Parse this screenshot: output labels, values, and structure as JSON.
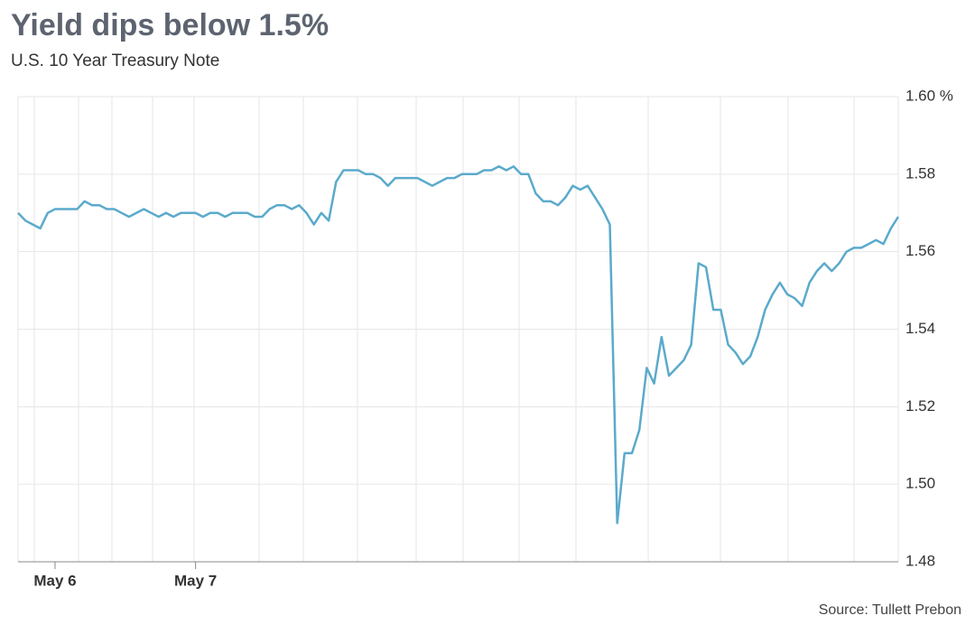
{
  "chart_data": {
    "type": "line",
    "title": "Yield dips below 1.5%",
    "subtitle": "U.S. 10 Year Treasury Note",
    "source": "Source: Tullett Prebon",
    "color": "#5baacb",
    "grid": true,
    "categories": [
      null,
      null,
      null,
      null,
      null,
      "May 6",
      null,
      null,
      null,
      null,
      null,
      null,
      null,
      null,
      null,
      null,
      null,
      null,
      null,
      null,
      null,
      null,
      null,
      null,
      "May 7",
      null,
      null,
      null,
      null,
      null,
      null,
      null,
      null,
      null,
      null,
      null,
      null,
      null,
      null,
      null,
      null,
      null,
      null,
      null,
      null,
      null,
      null,
      null,
      null,
      null,
      null,
      null,
      null,
      null,
      null,
      null,
      null,
      null,
      null,
      null,
      null,
      null,
      null,
      null,
      null,
      null,
      null,
      null,
      null,
      null,
      null,
      null,
      null,
      null,
      null,
      null,
      null,
      null,
      null,
      null,
      null,
      null,
      null,
      null,
      null,
      null,
      null,
      null,
      null,
      null,
      null,
      null,
      null,
      null,
      null,
      null,
      null,
      null,
      null,
      null,
      null,
      null,
      null,
      null,
      null,
      null,
      null,
      null,
      null,
      null,
      null,
      null,
      null,
      null,
      null,
      null,
      null,
      null,
      null,
      null
    ],
    "values": [
      1.57,
      1.568,
      1.567,
      1.566,
      1.57,
      1.571,
      1.571,
      1.571,
      1.571,
      1.573,
      1.572,
      1.572,
      1.571,
      1.571,
      1.57,
      1.569,
      1.57,
      1.571,
      1.57,
      1.569,
      1.57,
      1.569,
      1.57,
      1.57,
      1.57,
      1.569,
      1.57,
      1.57,
      1.569,
      1.57,
      1.57,
      1.57,
      1.569,
      1.569,
      1.571,
      1.572,
      1.572,
      1.571,
      1.572,
      1.57,
      1.567,
      1.57,
      1.568,
      1.578,
      1.581,
      1.581,
      1.581,
      1.58,
      1.58,
      1.579,
      1.577,
      1.579,
      1.579,
      1.579,
      1.579,
      1.578,
      1.577,
      1.578,
      1.579,
      1.579,
      1.58,
      1.58,
      1.58,
      1.581,
      1.581,
      1.582,
      1.581,
      1.582,
      1.58,
      1.58,
      1.575,
      1.573,
      1.573,
      1.572,
      1.574,
      1.577,
      1.576,
      1.577,
      1.574,
      1.571,
      1.567,
      1.49,
      1.508,
      1.508,
      1.514,
      1.53,
      1.526,
      1.538,
      1.528,
      1.53,
      1.532,
      1.536,
      1.557,
      1.556,
      1.545,
      1.545,
      1.536,
      1.534,
      1.531,
      1.533,
      1.538,
      1.545,
      1.549,
      1.552,
      1.549,
      1.548,
      1.546,
      1.552,
      1.555,
      1.557,
      1.555,
      1.557,
      1.56,
      1.561,
      1.561,
      1.562,
      1.563,
      1.562,
      1.566,
      1.569
    ],
    "ylim": [
      1.48,
      1.6
    ],
    "yticks": [
      1.48,
      {
        "value": 1.5,
        "label": "1.50"
      },
      1.52,
      1.54,
      1.56,
      1.58,
      {
        "value": 1.6,
        "label": "1.60 %"
      }
    ]
  }
}
